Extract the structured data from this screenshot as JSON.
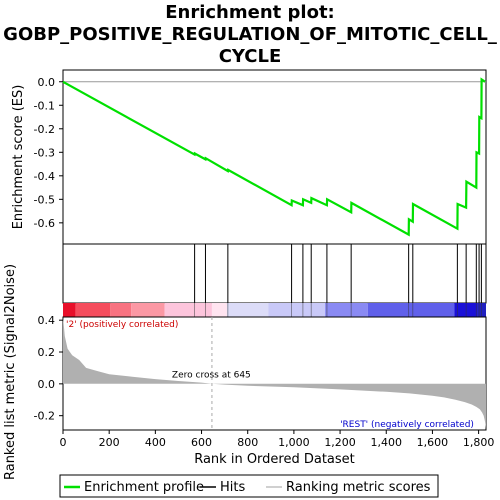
{
  "chart_data": {
    "type": "line",
    "title_lines": [
      "Enrichment plot:",
      "GOBP_POSITIVE_REGULATION_OF_MITOTIC_CELL_",
      "CYCLE"
    ],
    "n_genes": 1832,
    "xlim": [
      0,
      1832
    ],
    "es_panel": {
      "ylabel": "Enrichment score (ES)",
      "ylim": [
        -0.69,
        0.05
      ],
      "yticks": [
        0.0,
        -0.1,
        -0.2,
        -0.3,
        -0.4,
        -0.5,
        -0.6
      ],
      "ytick_labels": [
        "0.0",
        "-0.1",
        "-0.2",
        "-0.3",
        "-0.4",
        "-0.5",
        "-0.6"
      ],
      "series": [
        {
          "name": "Enrichment profile",
          "color": "#00e000",
          "x": [
            0,
            570,
            571,
            617,
            618,
            714,
            715,
            990,
            991,
            1039,
            1040,
            1075,
            1076,
            1143,
            1144,
            1248,
            1249,
            1497,
            1498,
            1515,
            1516,
            1708,
            1709,
            1746,
            1747,
            1790,
            1791,
            1802,
            1803,
            1812,
            1813,
            1828
          ],
          "y": [
            0.0,
            -0.31,
            -0.305,
            -0.33,
            -0.325,
            -0.38,
            -0.375,
            -0.525,
            -0.505,
            -0.525,
            -0.5,
            -0.515,
            -0.495,
            -0.525,
            -0.5,
            -0.555,
            -0.515,
            -0.65,
            -0.585,
            -0.595,
            -0.52,
            -0.625,
            -0.52,
            -0.535,
            -0.425,
            -0.45,
            -0.3,
            -0.305,
            -0.15,
            -0.155,
            0.01,
            0.0
          ]
        }
      ]
    },
    "hits": {
      "name": "Hits",
      "color": "#000000",
      "positions": [
        570,
        617,
        714,
        990,
        1039,
        1075,
        1143,
        1248,
        1497,
        1515,
        1708,
        1746,
        1790,
        1802,
        1812
      ]
    },
    "color_bar": {
      "segments": [
        {
          "from": 0,
          "to": 55,
          "color": "#e8102a"
        },
        {
          "from": 55,
          "to": 205,
          "color": "#f54d5d"
        },
        {
          "from": 205,
          "to": 295,
          "color": "#f87381"
        },
        {
          "from": 295,
          "to": 440,
          "color": "#fb98a4"
        },
        {
          "from": 440,
          "to": 645,
          "color": "#fdc5dc"
        },
        {
          "from": 645,
          "to": 710,
          "color": "#ffe4f0"
        },
        {
          "from": 710,
          "to": 890,
          "color": "#dcdcf8"
        },
        {
          "from": 890,
          "to": 1135,
          "color": "#c9c9f8"
        },
        {
          "from": 1135,
          "to": 1320,
          "color": "#8a8af3"
        },
        {
          "from": 1320,
          "to": 1695,
          "color": "#6060ea"
        },
        {
          "from": 1695,
          "to": 1795,
          "color": "#1a10d8"
        },
        {
          "from": 1795,
          "to": 1832,
          "color": "#2020c0"
        }
      ]
    },
    "metric_panel": {
      "ylabel": "Ranked list metric (Signal2Noise)",
      "xlabel": "Rank in Ordered Dataset",
      "ylim": [
        -0.29,
        0.42
      ],
      "yticks": [
        0.4,
        0.2,
        0.0,
        -0.2
      ],
      "ytick_labels": [
        "0.4",
        "0.2",
        "0.0",
        "-0.2"
      ],
      "xticks": [
        0,
        200,
        400,
        600,
        800,
        1000,
        1200,
        1400,
        1600,
        1800
      ],
      "xtick_labels": [
        "0",
        "200",
        "400",
        "600",
        "800",
        "1,000",
        "1,200",
        "1,400",
        "1,600",
        "1,800"
      ],
      "fill_color": "#b0b0b0",
      "profile_x": [
        0,
        8,
        20,
        40,
        70,
        100,
        150,
        200,
        300,
        400,
        500,
        600,
        645,
        700,
        800,
        1000,
        1200,
        1400,
        1500,
        1600,
        1650,
        1700,
        1740,
        1770,
        1790,
        1805,
        1815,
        1822,
        1828,
        1832
      ],
      "profile_y": [
        0.42,
        0.3,
        0.22,
        0.18,
        0.15,
        0.1,
        0.08,
        0.06,
        0.045,
        0.03,
        0.018,
        0.008,
        0.0,
        -0.005,
        -0.012,
        -0.022,
        -0.035,
        -0.05,
        -0.06,
        -0.075,
        -0.085,
        -0.1,
        -0.115,
        -0.13,
        -0.145,
        -0.16,
        -0.18,
        -0.2,
        -0.24,
        -0.28
      ],
      "zero_cross": 645,
      "zero_cross_label": "Zero cross at 645",
      "pos_label": "'2' (positively correlated)",
      "pos_color": "#cc0000",
      "neg_label": "'REST' (negatively correlated)",
      "neg_color": "#0000cc"
    },
    "legend": [
      {
        "label": "Enrichment profile",
        "color": "#00e000",
        "kind": "line"
      },
      {
        "label": "Hits",
        "color": "#000000",
        "kind": "line"
      },
      {
        "label": "Ranking metric scores",
        "color": "#c0c0c0",
        "kind": "line"
      }
    ]
  }
}
